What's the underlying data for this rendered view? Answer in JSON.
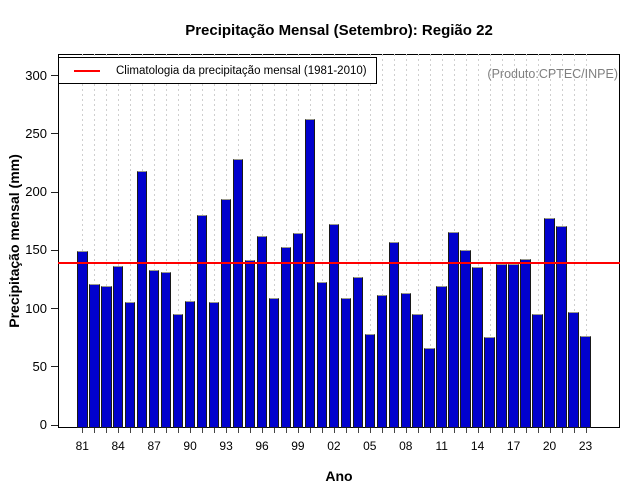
{
  "title": "Precipitação Mensal (Setembro): Região 22",
  "xlabel": "Ano",
  "ylabel": "Precipitação mensal (mm)",
  "legend": {
    "label": "Climatologia da precipitação mensal (1981-2010)"
  },
  "watermark": "(Produto:CPTEC/INPE)",
  "colors": {
    "bar": "#0101cd",
    "bar_border": "#191919",
    "climatology_line": "#ff0000",
    "watermark_text": "#808080",
    "gridline": "#cfcfcf"
  },
  "chart_data": {
    "type": "bar",
    "title": "Precipitação Mensal (Setembro): Região 22",
    "xlabel": "Ano",
    "ylabel": "Precipitação mensal (mm)",
    "ylim": [
      0,
      300
    ],
    "yticks": [
      0,
      50,
      100,
      150,
      200,
      250,
      300
    ],
    "grid": "vertical-dotted",
    "legend_position": "top-left",
    "annotation": "(Produto:CPTEC/INPE)",
    "legend_entry": "Climatologia da precipitação mensal (1981-2010)",
    "climatology_value": 138.6,
    "x_tick_labels": [
      "81",
      "84",
      "87",
      "90",
      "93",
      "96",
      "99",
      "02",
      "05",
      "08",
      "11",
      "14",
      "17",
      "20",
      "23"
    ],
    "years": [
      1981,
      1982,
      1983,
      1984,
      1985,
      1986,
      1987,
      1988,
      1989,
      1990,
      1991,
      1992,
      1993,
      1994,
      1995,
      1996,
      1997,
      1998,
      1999,
      2000,
      2001,
      2002,
      2003,
      2004,
      2005,
      2006,
      2007,
      2008,
      2009,
      2010,
      2011,
      2012,
      2013,
      2014,
      2015,
      2016,
      2017,
      2018,
      2019,
      2020,
      2021,
      2022,
      2023
    ],
    "values": [
      149,
      121,
      119,
      136,
      105,
      218,
      133,
      131,
      95,
      106,
      180,
      105,
      194,
      228,
      141,
      162,
      109,
      152,
      164,
      262,
      122,
      172,
      109,
      127,
      78,
      111,
      157,
      113,
      95,
      66,
      119,
      165,
      150,
      135,
      75,
      138,
      138,
      142,
      95,
      177,
      170,
      97,
      76
    ]
  }
}
